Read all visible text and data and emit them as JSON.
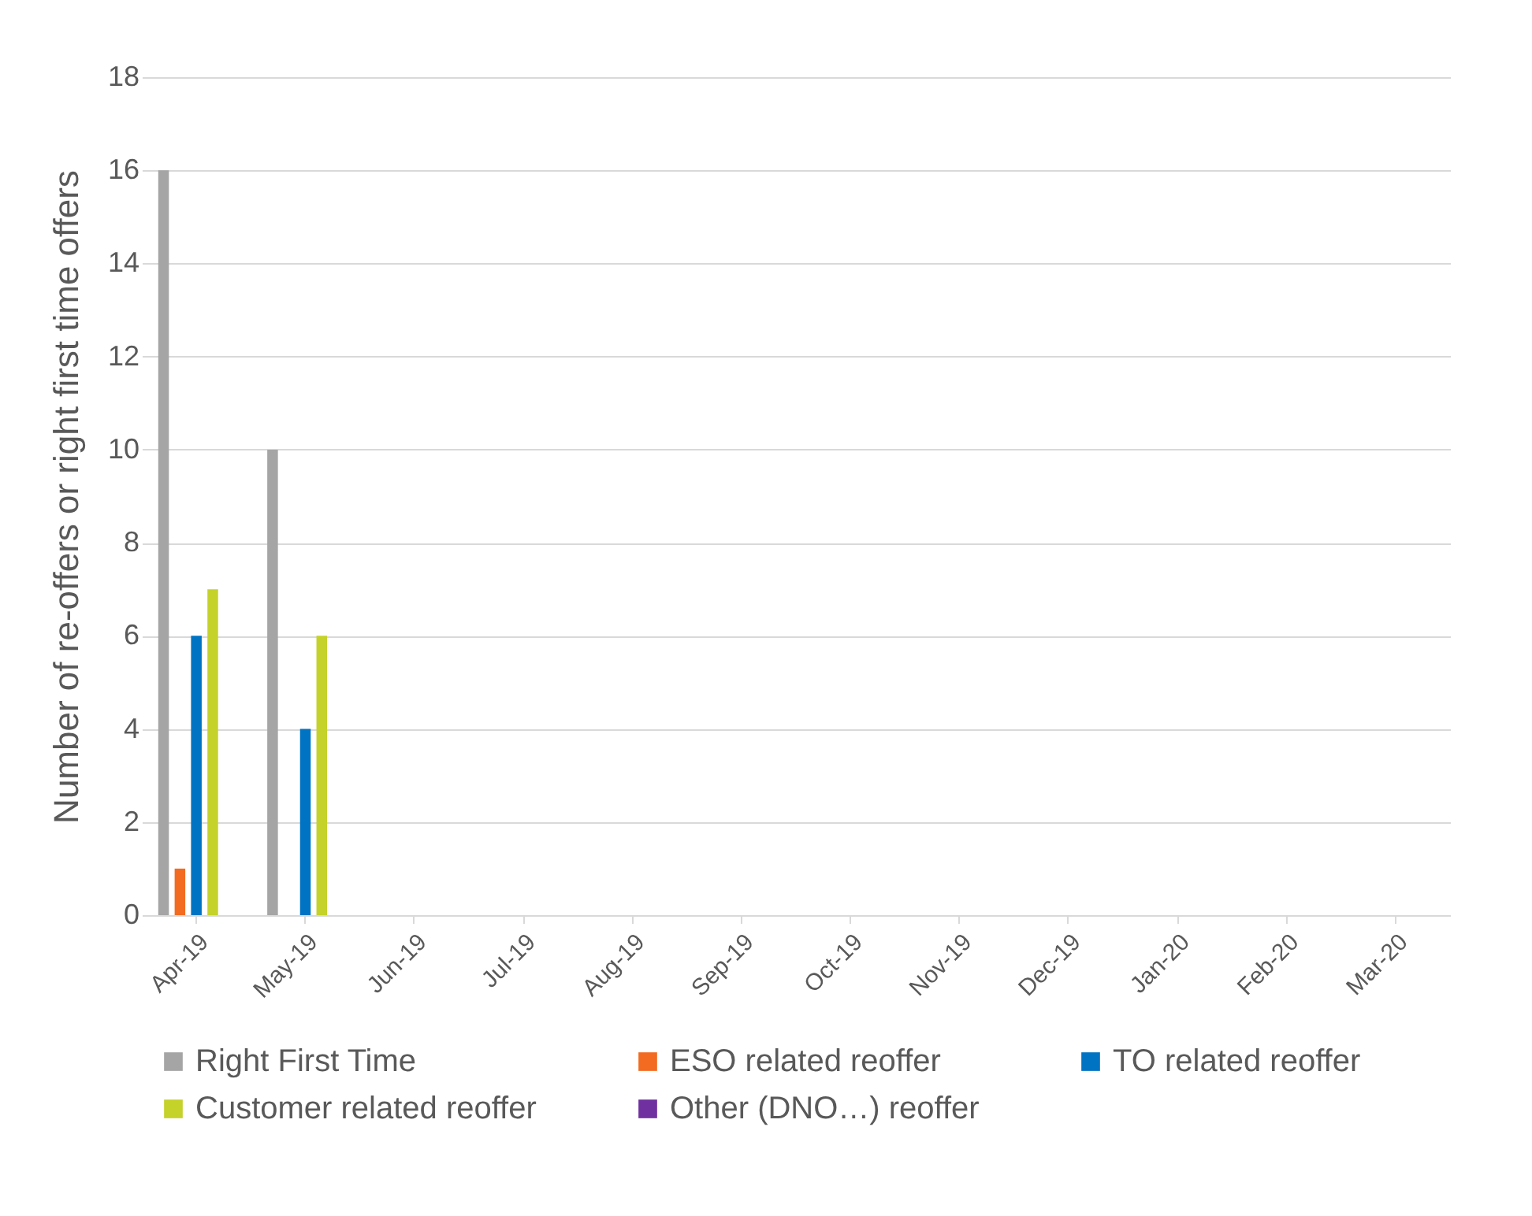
{
  "chart_data": {
    "type": "bar",
    "ylabel": "Number of re-offers or right first time offers",
    "categories": [
      "Apr-19",
      "May-19",
      "Jun-19",
      "Jul-19",
      "Aug-19",
      "Sep-19",
      "Oct-19",
      "Nov-19",
      "Dec-19",
      "Jan-20",
      "Feb-20",
      "Mar-20"
    ],
    "series": [
      {
        "name": "Right First Time",
        "color": "#a5a5a5",
        "values": [
          16,
          10,
          null,
          null,
          null,
          null,
          null,
          null,
          null,
          null,
          null,
          null
        ]
      },
      {
        "name": "ESO related reoffer",
        "color": "#f26b21",
        "values": [
          1,
          0,
          null,
          null,
          null,
          null,
          null,
          null,
          null,
          null,
          null,
          null
        ]
      },
      {
        "name": "TO related reoffer",
        "color": "#0073c2",
        "values": [
          6,
          4,
          null,
          null,
          null,
          null,
          null,
          null,
          null,
          null,
          null,
          null
        ]
      },
      {
        "name": "Customer related reoffer",
        "color": "#c4d22a",
        "values": [
          7,
          6,
          null,
          null,
          null,
          null,
          null,
          null,
          null,
          null,
          null,
          null
        ]
      },
      {
        "name": "Other (DNO…) reoffer",
        "color": "#7030a0",
        "values": [
          0,
          0,
          null,
          null,
          null,
          null,
          null,
          null,
          null,
          null,
          null,
          null
        ]
      }
    ],
    "ylim": [
      0,
      18
    ],
    "yticks": [
      0,
      2,
      4,
      6,
      8,
      10,
      12,
      14,
      16,
      18
    ],
    "grid": "y",
    "legend": "bottom"
  }
}
